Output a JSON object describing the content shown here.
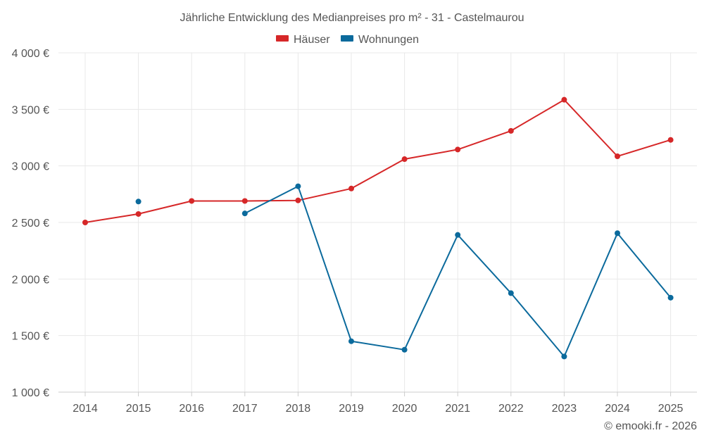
{
  "chart_data": {
    "type": "line",
    "title": "Jährliche Entwicklung des Medianpreises pro m² - 31 - Castelmaurou",
    "xlabel": "",
    "ylabel": "",
    "categories": [
      "2014",
      "2015",
      "2016",
      "2017",
      "2018",
      "2019",
      "2020",
      "2021",
      "2022",
      "2023",
      "2024",
      "2025"
    ],
    "ylim": [
      1000,
      4000
    ],
    "yticks": [
      1000,
      1500,
      2000,
      2500,
      3000,
      3500,
      4000
    ],
    "ytick_labels": [
      "1 000 €",
      "1 500 €",
      "2 000 €",
      "2 500 €",
      "3 000 €",
      "3 500 €",
      "4 000 €"
    ],
    "grid": true,
    "legend_position": "top-center",
    "series": [
      {
        "name": "Häuser",
        "color": "#d62728",
        "values": [
          2500,
          2575,
          2690,
          2690,
          2695,
          2800,
          3060,
          3145,
          3310,
          3585,
          3085,
          3230
        ]
      },
      {
        "name": "Wohnungen",
        "color": "#0b6a9c",
        "values": [
          null,
          2685,
          null,
          2580,
          2820,
          1450,
          1375,
          2390,
          1875,
          1315,
          2405,
          1835
        ]
      }
    ],
    "credit": "© emooki.fr - 2026"
  }
}
